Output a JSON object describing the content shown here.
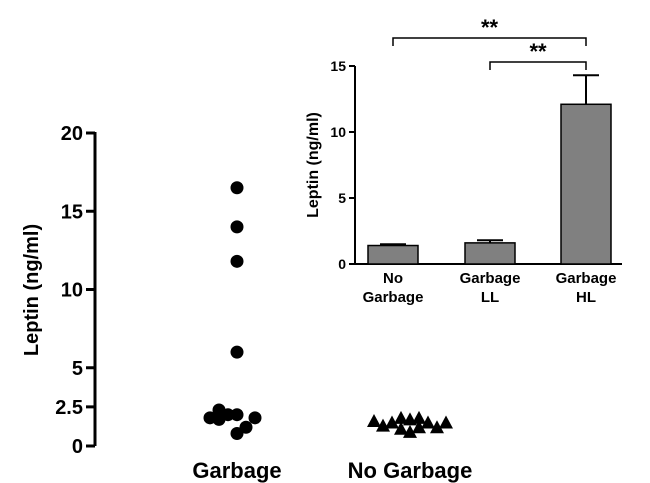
{
  "chart_data": [
    {
      "type": "scatter",
      "ylabel": "Leptin (ng/ml)",
      "ylim": [
        0,
        20
      ],
      "yticks": [
        "0",
        "2.5",
        "5",
        "10",
        "15",
        "20"
      ],
      "yticks_values": [
        0,
        2.5,
        5,
        10,
        15,
        20
      ],
      "categories": [
        "Garbage",
        "No Garbage"
      ],
      "series": [
        {
          "category": "Garbage",
          "marker": "circle",
          "points": [
            {
              "offset": 0,
              "y": 16.5
            },
            {
              "offset": 0,
              "y": 14.0
            },
            {
              "offset": 0,
              "y": 11.8
            },
            {
              "offset": 0,
              "y": 6.0
            },
            {
              "offset": -2,
              "y": 2.3
            },
            {
              "offset": -1,
              "y": 2.0
            },
            {
              "offset": 0,
              "y": 2.0
            },
            {
              "offset": -3,
              "y": 1.8
            },
            {
              "offset": -2,
              "y": 1.7
            },
            {
              "offset": 2,
              "y": 1.8
            },
            {
              "offset": 1,
              "y": 1.2
            },
            {
              "offset": 0,
              "y": 0.8
            }
          ]
        },
        {
          "category": "No Garbage",
          "marker": "triangle",
          "points": [
            {
              "offset": -4,
              "y": 1.6
            },
            {
              "offset": -3,
              "y": 1.3
            },
            {
              "offset": -2,
              "y": 1.5
            },
            {
              "offset": -1,
              "y": 1.8
            },
            {
              "offset": -1,
              "y": 1.1
            },
            {
              "offset": 0,
              "y": 1.7
            },
            {
              "offset": 0,
              "y": 0.9
            },
            {
              "offset": 1,
              "y": 1.8
            },
            {
              "offset": 1,
              "y": 1.2
            },
            {
              "offset": 2,
              "y": 1.5
            },
            {
              "offset": 3,
              "y": 1.2
            },
            {
              "offset": 4,
              "y": 1.5
            }
          ]
        }
      ]
    },
    {
      "type": "bar",
      "ylabel": "Leptin (ng/ml)",
      "ylim": [
        0,
        15
      ],
      "yticks": [
        "0",
        "5",
        "10",
        "15"
      ],
      "yticks_values": [
        0,
        5,
        10,
        15
      ],
      "categories": [
        [
          "No",
          "Garbage"
        ],
        [
          "Garbage",
          "LL"
        ],
        [
          "Garbage",
          "HL"
        ]
      ],
      "values": [
        1.4,
        1.6,
        12.1
      ],
      "errors": [
        0.1,
        0.2,
        2.2
      ],
      "bar_color": "#808080",
      "significance": [
        {
          "from": 0,
          "to": 2,
          "label": "**"
        },
        {
          "from": 1,
          "to": 2,
          "label": "**"
        }
      ]
    }
  ]
}
